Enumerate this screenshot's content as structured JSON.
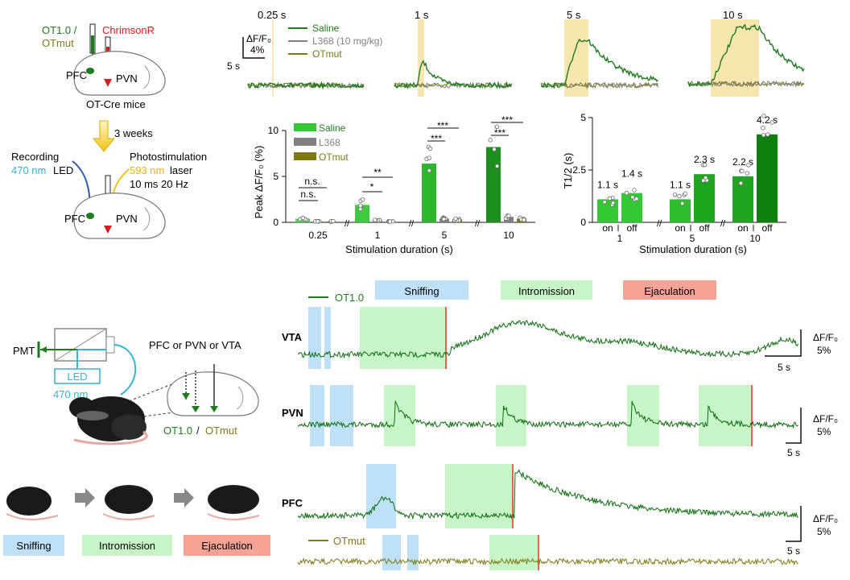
{
  "colors": {
    "ot_green": "#1f7a1f",
    "dark_green": "#0b6b0b",
    "bright_green": "#34c934",
    "grey": "#808080",
    "olive": "#7d7a14",
    "red": "#d81b1b",
    "cyan": "#33b5d4",
    "yellow": "#f0c419",
    "sniff": "#bfe1f7",
    "intro": "#c8f5c8",
    "ejac": "#f4a395",
    "ejac_line": "#e7614e",
    "yellow_shade": "#f8e6b0"
  },
  "schematic_top": {
    "ot10": "OT1.0 /",
    "otmut": "OTmut",
    "chrimson": "ChrimsonR",
    "pfc": "PFC",
    "pvn": "PVN",
    "mice": "OT-Cre mice",
    "weeks": "3 weeks",
    "recording": "Recording",
    "led_nm": "470 nm",
    "led": "LED",
    "photostim": "Photostimulation",
    "laser_nm": "593 nm",
    "laser": "laser",
    "params": "10 ms 20 Hz",
    "pfc2": "PFC",
    "pvn2": "PVN"
  },
  "traces_top": {
    "durations": [
      "0.25 s",
      "1 s",
      "5 s",
      "10 s"
    ],
    "scale_y": "ΔF/F₀",
    "scale_y_val": "4%",
    "scale_x": "5 s",
    "legend": [
      "Saline",
      "L368 (10 mg/kg)",
      "OTmut"
    ]
  },
  "chart_data": [
    {
      "type": "bar",
      "title": "",
      "ylabel": "Peak ΔF/F₀ (%)",
      "xlabel": "Stimulation duration (s)",
      "ylim": [
        0,
        10
      ],
      "yticks": [
        "0",
        "5",
        "10"
      ],
      "categories": [
        "0.25",
        "1",
        "5",
        "10"
      ],
      "series": [
        {
          "name": "Saline",
          "values": [
            0.4,
            1.9,
            6.4,
            8.2
          ]
        },
        {
          "name": "L368",
          "values": [
            0.1,
            0.2,
            0.4,
            0.6
          ]
        },
        {
          "name": "OTmut",
          "values": [
            0.1,
            0.1,
            0.3,
            0.4
          ]
        }
      ],
      "significance": [
        "n.s.",
        "n.s.",
        "*",
        "**",
        "***",
        "***",
        "***",
        "***"
      ]
    },
    {
      "type": "bar",
      "title": "",
      "ylabel": "T1/2 (s)",
      "xlabel": "Stimulation duration (s)",
      "ylim": [
        0,
        5
      ],
      "yticks": [
        "0",
        "2.5",
        "5"
      ],
      "categories": [
        "1",
        "5",
        "10"
      ],
      "sub_labels": [
        "on",
        "off"
      ],
      "series": [
        {
          "name": "on",
          "values": [
            1.1,
            1.1,
            2.2
          ]
        },
        {
          "name": "off",
          "values": [
            1.4,
            2.3,
            4.2
          ]
        }
      ],
      "value_labels": [
        "1.1 s",
        "1.4 s",
        "1.1 s",
        "2.3 s",
        "2.2 s",
        "4.2 s"
      ]
    }
  ],
  "schematic_bottom": {
    "pmt": "PMT",
    "led": "LED",
    "led_nm": "470 nm",
    "regions": "PFC or PVN or VTA",
    "ot10": "OT1.0",
    "slash": " / ",
    "otmut": "OTmut",
    "behaviors": [
      "Sniffing",
      "Intromission",
      "Ejaculation"
    ]
  },
  "traces_bottom": {
    "legend_ot": "OT1.0",
    "legend_sniff": "Sniffing",
    "legend_intro": "Intromission",
    "legend_ejac": "Ejaculation",
    "rows": [
      "VTA",
      "PVN",
      "PFC"
    ],
    "otmut": "OTmut",
    "scale_y": "ΔF/F₀",
    "scale_y_val": "5%",
    "scale_x": "5 s"
  }
}
